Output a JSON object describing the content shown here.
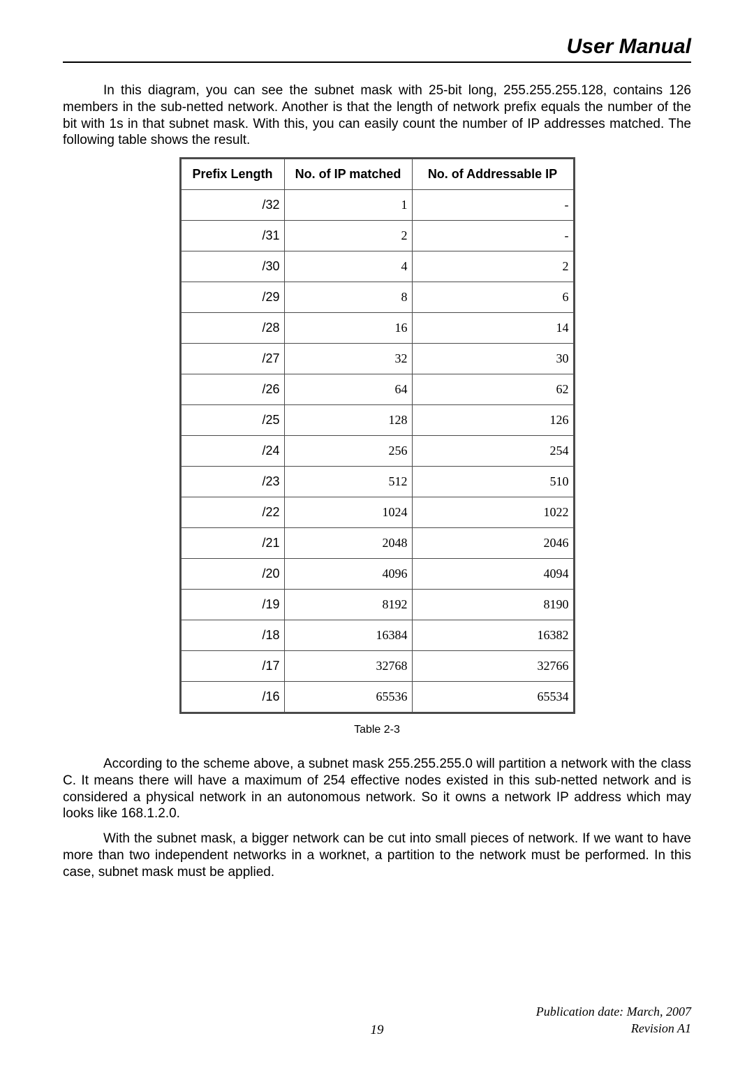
{
  "header": {
    "title": "User Manual"
  },
  "paragraphs": {
    "p1": "In this diagram, you can see the subnet mask with 25-bit long, 255.255.255.128, contains 126 members in the sub-netted network. Another is that the length of network prefix equals the number of the bit with 1s in that subnet mask. With this, you can easily count the number of IP addresses matched. The following table shows the result.",
    "p2": "According to the scheme above, a subnet mask 255.255.255.0 will partition a network with the class C. It means there will have a maximum of 254 effective nodes existed in this sub-netted network and is considered a physical network in an autonomous network. So it owns a network IP address which may looks like 168.1.2.0.",
    "p3": "With the subnet mask, a bigger network can be cut into small pieces of network. If we want to have more than two independent networks in a worknet, a partition to the network must be performed. In this case, subnet mask must be applied."
  },
  "table": {
    "caption": "Table 2-3",
    "headers": {
      "prefix": "Prefix Length",
      "matched": "No. of IP matched",
      "addr": "No. of Addressable IP"
    },
    "rows": [
      {
        "prefix": "/32",
        "matched": "1",
        "addr": "-"
      },
      {
        "prefix": "/31",
        "matched": "2",
        "addr": "-"
      },
      {
        "prefix": "/30",
        "matched": "4",
        "addr": "2"
      },
      {
        "prefix": "/29",
        "matched": "8",
        "addr": "6"
      },
      {
        "prefix": "/28",
        "matched": "16",
        "addr": "14"
      },
      {
        "prefix": "/27",
        "matched": "32",
        "addr": "30"
      },
      {
        "prefix": "/26",
        "matched": "64",
        "addr": "62"
      },
      {
        "prefix": "/25",
        "matched": "128",
        "addr": "126"
      },
      {
        "prefix": "/24",
        "matched": "256",
        "addr": "254"
      },
      {
        "prefix": "/23",
        "matched": "512",
        "addr": "510"
      },
      {
        "prefix": "/22",
        "matched": "1024",
        "addr": "1022"
      },
      {
        "prefix": "/21",
        "matched": "2048",
        "addr": "2046"
      },
      {
        "prefix": "/20",
        "matched": "4096",
        "addr": "4094"
      },
      {
        "prefix": "/19",
        "matched": "8192",
        "addr": "8190"
      },
      {
        "prefix": "/18",
        "matched": "16384",
        "addr": "16382"
      },
      {
        "prefix": "/17",
        "matched": "32768",
        "addr": "32766"
      },
      {
        "prefix": "/16",
        "matched": "65536",
        "addr": "65534"
      }
    ]
  },
  "footer": {
    "line1": "Publication date: March, 2007",
    "line2": "Revision A1",
    "pagenum": "19"
  }
}
